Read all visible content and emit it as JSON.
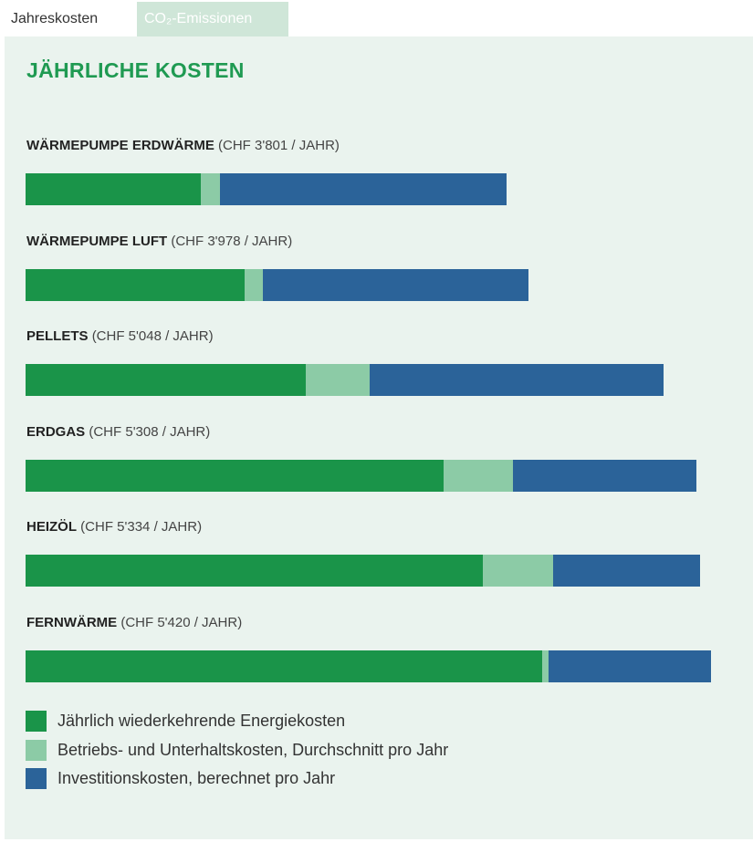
{
  "tabs": [
    "Jahreskosten",
    "CO₂-Emissionen"
  ],
  "chart_data": {
    "type": "bar",
    "orientation": "horizontal",
    "stacked": true,
    "title": "JÄHRLICHE KOSTEN",
    "categories": [
      "WÄRMEPUMPE ERDWÄRME",
      "WÄRMEPUMPE LUFT",
      "PELLETS",
      "ERDGAS",
      "HEIZÖL",
      "FERNWÄRME"
    ],
    "category_notes": [
      "(CHF 3'801 / JAHR)",
      "(CHF 3'978 / JAHR)",
      "(CHF 5'048 / JAHR)",
      "(CHF 5'308 / JAHR)",
      "(CHF 5'334 / JAHR)",
      "(CHF 5'420 / JAHR)"
    ],
    "series": [
      {
        "name": "Jährlich wiederkehrende Energiekosten",
        "color": "#1a9449",
        "values": [
          1385,
          1730,
          2215,
          3304,
          3616,
          4085
        ]
      },
      {
        "name": "Betriebs- und Unterhaltskosten, Durchschnitt pro Jahr",
        "color": "#8ccba6",
        "values": [
          150,
          150,
          504,
          547,
          556,
          50
        ]
      },
      {
        "name": "Investitionskosten, berechnet pro Jahr",
        "color": "#2b6399",
        "values": [
          2266,
          2098,
          2329,
          1457,
          1162,
          1285
        ]
      }
    ]
  }
}
